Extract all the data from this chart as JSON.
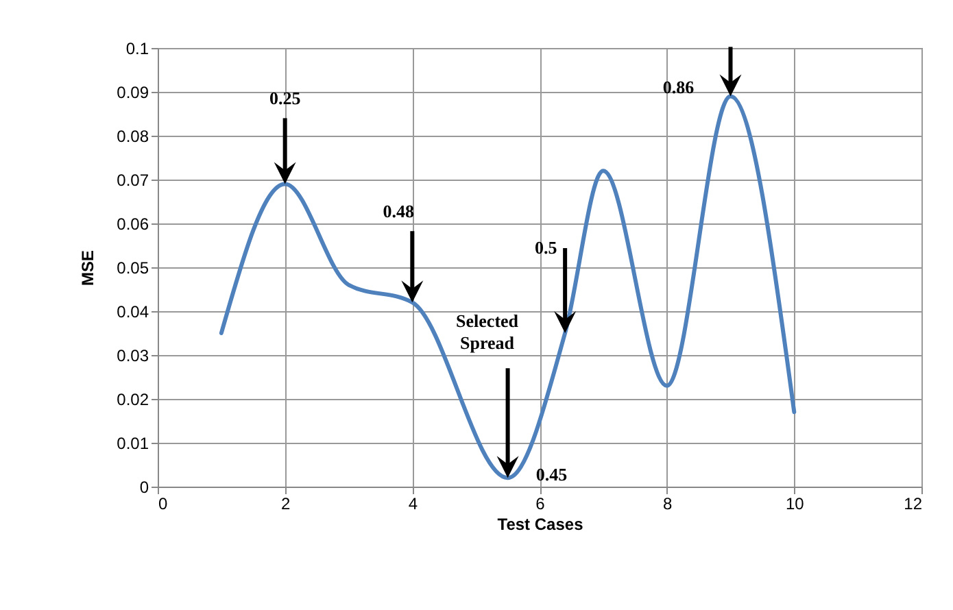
{
  "chart_data": {
    "type": "line",
    "xlabel": "Test Cases",
    "ylabel": "MSE",
    "x": [
      1,
      2,
      3,
      4,
      5.5,
      6.4,
      7,
      8,
      9,
      10
    ],
    "series": [
      {
        "color": "#4f81bd",
        "values": [
          0.035,
          0.069,
          0.046,
          0.042,
          0.002,
          0.035,
          0.072,
          0.023,
          0.089,
          0.017
        ]
      }
    ],
    "xlim": [
      0,
      12
    ],
    "xticks": [
      0,
      2,
      4,
      6,
      8,
      10,
      12
    ],
    "ylim": [
      0,
      0.1
    ],
    "yticks": [
      0,
      0.01,
      0.02,
      0.03,
      0.04,
      0.05,
      0.06,
      0.07,
      0.08,
      0.09,
      0.1
    ],
    "grid": true,
    "marker": "none",
    "line_style": "solid",
    "annotations": [
      {
        "text": "0.25",
        "x": 2,
        "y": 0.069
      },
      {
        "text": "0.48",
        "x": 4,
        "y": 0.042
      },
      {
        "text": "Selected Spread",
        "x": 5.5,
        "y": 0.002
      },
      {
        "text": "0.45",
        "x": 5.5,
        "y": 0.002
      },
      {
        "text": "0.5",
        "x": 6.4,
        "y": 0.035
      },
      {
        "text": "0.86",
        "x": 9,
        "y": 0.089
      }
    ]
  }
}
